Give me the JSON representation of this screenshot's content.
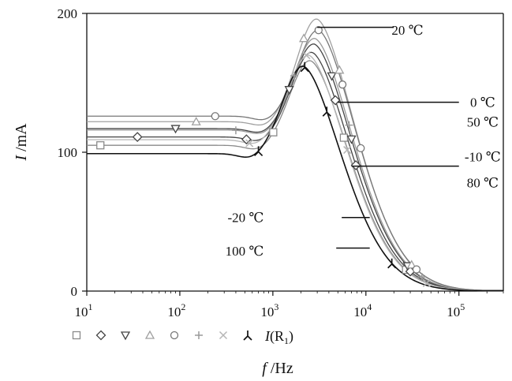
{
  "chart_data": {
    "type": "line",
    "xlabel": {
      "italic": "f",
      "rest": " /Hz"
    },
    "ylabel": {
      "italic": "I",
      "rest": " /mA"
    },
    "x_scale": "log",
    "xlim": [
      10,
      300000
    ],
    "ylim": [
      0,
      200
    ],
    "x_ticks": [
      {
        "value": 10,
        "base": "10",
        "exp": "1"
      },
      {
        "value": 100,
        "base": "10",
        "exp": "2"
      },
      {
        "value": 1000,
        "base": "10",
        "exp": "3"
      },
      {
        "value": 10000,
        "base": "10",
        "exp": "4"
      },
      {
        "value": 100000,
        "base": "10",
        "exp": "5"
      }
    ],
    "y_ticks": [
      {
        "value": 0,
        "label": "0"
      },
      {
        "value": 100,
        "label": "100"
      },
      {
        "value": 200,
        "label": "200"
      }
    ],
    "grid": false,
    "legend_placement": "bottom-left",
    "legend": {
      "markers": [
        "square",
        "diamond",
        "triangle-down",
        "triangle-up",
        "circle",
        "plus",
        "cross",
        "lambda"
      ],
      "label_prefix": "I(R",
      "label_sub": "1",
      "label_suffix": ")"
    },
    "series": [
      {
        "temp": -20,
        "marker": "square",
        "color": "#8a8a8a",
        "plateau": 105,
        "peak_x": 2500,
        "peak_y": 166
      },
      {
        "temp": -10,
        "marker": "diamond",
        "color": "#444444",
        "plateau": 111,
        "peak_x": 2600,
        "peak_y": 172
      },
      {
        "temp": 0,
        "marker": "triangle-down",
        "color": "#444444",
        "plateau": 117,
        "peak_x": 2750,
        "peak_y": 178
      },
      {
        "temp": 20,
        "marker": "triangle-up",
        "color": "#a0a0a0",
        "plateau": 122,
        "peak_x": 2950,
        "peak_y": 196
      },
      {
        "temp": 50,
        "marker": "circle",
        "color": "#777777",
        "plateau": 126,
        "peak_x": 3050,
        "peak_y": 188
      },
      {
        "temp": 80,
        "marker": "plus",
        "color": "#9a9a9a",
        "plateau": 116,
        "peak_x": 2800,
        "peak_y": 182
      },
      {
        "temp": 100,
        "marker": "cross",
        "color": "#b5b5b5",
        "plateau": 109,
        "peak_x": 2400,
        "peak_y": 170
      },
      {
        "temp": null,
        "marker": "lambda",
        "color": "#111111",
        "plateau": 99,
        "peak_x": 2100,
        "peak_y": 162
      }
    ],
    "annotations": [
      {
        "text": "20 ℃",
        "line_x": [
          3000,
          20000
        ],
        "line_y": 190,
        "text_x": 28000,
        "text_y": 188
      },
      {
        "text": "0 ℃",
        "line_x": [
          5000,
          100000
        ],
        "line_y": 136,
        "text_x": 180000,
        "text_y": 136
      },
      {
        "text": "50 ℃",
        "line_x": null,
        "line_y": null,
        "text_x": 180000,
        "text_y": 122
      },
      {
        "text": "-10 ℃",
        "line_x": [
          7000,
          100000
        ],
        "line_y": 90,
        "text_x": 180000,
        "text_y": 97
      },
      {
        "text": "80 ℃",
        "line_x": null,
        "line_y": null,
        "text_x": 180000,
        "text_y": 78
      },
      {
        "text": "-20 ℃",
        "line_x": [
          5500,
          11000
        ],
        "line_y": 53,
        "text_x": 800,
        "text_y": 53
      },
      {
        "text": "100 ℃",
        "line_x": [
          4800,
          11000
        ],
        "line_y": 31,
        "text_x": 800,
        "text_y": 29
      }
    ]
  }
}
